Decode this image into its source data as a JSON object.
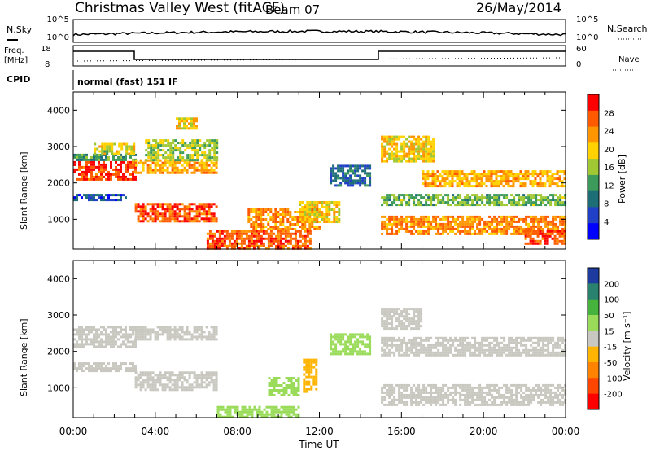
{
  "header": {
    "title": "Christmas Valley West (fitACF)",
    "beam": "Beam 07",
    "date": "26/May/2014"
  },
  "status": {
    "nsky_label": "N.Sky",
    "nsearch_label": "N.Search",
    "freq_label": "Freq.",
    "freq_unit": "[MHz]",
    "nave_label": "Nave",
    "cpid_label": "CPID",
    "cpid_text": "normal (fast) 151 IF",
    "nsky_ticks": [
      "10^5",
      "10^0"
    ],
    "nsearch_ticks": [
      "10^5",
      "10^0"
    ],
    "freq_ticks": [
      "18",
      "8"
    ],
    "nave_ticks": [
      "60",
      "0"
    ]
  },
  "chart_data": [
    {
      "type": "heatmap",
      "title": "",
      "xlabel": "Time UT",
      "ylabel": "Slant Range [km]",
      "xlim": [
        "00:00",
        "24:00"
      ],
      "ylim": [
        180,
        4500
      ],
      "x_ticks": [
        "00:00",
        "04:00",
        "08:00",
        "12:00",
        "16:00",
        "20:00",
        "00:00"
      ],
      "y_ticks": [
        1000,
        2000,
        3000,
        4000
      ],
      "colorbar": {
        "label": "Power [dB]",
        "ticks": [
          "28",
          "24",
          "20",
          "16",
          "12",
          "8",
          "4"
        ],
        "colors": [
          "#ff0000",
          "#ff5a00",
          "#ff9600",
          "#ffd200",
          "#a0c832",
          "#3c9a5a",
          "#1e6e78",
          "#2040c8",
          "#0000ff"
        ]
      },
      "bands": [
        {
          "t0": 0.0,
          "t1": 3.0,
          "r0": 2100,
          "r1": 2600,
          "value": 28
        },
        {
          "t0": 0.0,
          "t1": 3.0,
          "r0": 2600,
          "r1": 2800,
          "value": 12
        },
        {
          "t0": 0.0,
          "t1": 2.5,
          "r0": 1550,
          "r1": 1700,
          "value": 6
        },
        {
          "t0": 1.0,
          "t1": 3.0,
          "r0": 2800,
          "r1": 3100,
          "value": 18
        },
        {
          "t0": 3.0,
          "t1": 7.0,
          "r0": 950,
          "r1": 1450,
          "value": 27
        },
        {
          "t0": 3.0,
          "t1": 7.0,
          "r0": 2300,
          "r1": 2650,
          "value": 22
        },
        {
          "t0": 3.5,
          "t1": 7.0,
          "r0": 2650,
          "r1": 3200,
          "value": 16
        },
        {
          "t0": 5.0,
          "t1": 6.0,
          "r0": 3500,
          "r1": 3800,
          "value": 20
        },
        {
          "t0": 6.5,
          "t1": 11.5,
          "r0": 200,
          "r1": 700,
          "value": 27
        },
        {
          "t0": 8.5,
          "t1": 12.0,
          "r0": 700,
          "r1": 1300,
          "value": 24
        },
        {
          "t0": 11.0,
          "t1": 13.0,
          "r0": 900,
          "r1": 1500,
          "value": 20
        },
        {
          "t0": 12.5,
          "t1": 14.5,
          "r0": 1900,
          "r1": 2500,
          "value": 8
        },
        {
          "t0": 15.0,
          "t1": 17.5,
          "r0": 2600,
          "r1": 3300,
          "value": 20
        },
        {
          "t0": 15.0,
          "t1": 24.0,
          "r0": 600,
          "r1": 1100,
          "value": 24
        },
        {
          "t0": 15.0,
          "t1": 24.0,
          "r0": 1400,
          "r1": 1700,
          "value": 14
        },
        {
          "t0": 17.0,
          "t1": 24.0,
          "r0": 1900,
          "r1": 2350,
          "value": 22
        },
        {
          "t0": 22.0,
          "t1": 24.0,
          "r0": 300,
          "r1": 700,
          "value": 28
        }
      ]
    },
    {
      "type": "heatmap",
      "title": "",
      "xlabel": "Time UT",
      "ylabel": "Slant Range [km]",
      "xlim": [
        "00:00",
        "24:00"
      ],
      "ylim": [
        180,
        4500
      ],
      "x_ticks": [
        "00:00",
        "04:00",
        "08:00",
        "12:00",
        "16:00",
        "20:00",
        "00:00"
      ],
      "y_ticks": [
        1000,
        2000,
        3000,
        4000
      ],
      "colorbar": {
        "label": "Velocity [m s⁻¹]",
        "ticks": [
          "200",
          "100",
          "50",
          "15",
          "-15",
          "-50",
          "-100",
          "-200"
        ],
        "colors": [
          "#1e3ca0",
          "#28826e",
          "#46b43c",
          "#9adc5a",
          "#c8c8c0",
          "#ffb400",
          "#ff8200",
          "#ff4600",
          "#ff0000"
        ]
      },
      "bands": [
        {
          "t0": 0.0,
          "t1": 3.0,
          "r0": 2100,
          "r1": 2700,
          "value": 0
        },
        {
          "t0": 0.0,
          "t1": 3.0,
          "r0": 1450,
          "r1": 1700,
          "value": 0
        },
        {
          "t0": 3.0,
          "t1": 7.0,
          "r0": 2300,
          "r1": 2700,
          "value": 0
        },
        {
          "t0": 3.0,
          "t1": 7.0,
          "r0": 950,
          "r1": 1450,
          "value": 0
        },
        {
          "t0": 7.0,
          "t1": 11.0,
          "r0": 200,
          "r1": 500,
          "value": 45
        },
        {
          "t0": 9.5,
          "t1": 11.0,
          "r0": 800,
          "r1": 1300,
          "value": 60
        },
        {
          "t0": 11.2,
          "t1": 11.8,
          "r0": 900,
          "r1": 1800,
          "value": -60
        },
        {
          "t0": 12.5,
          "t1": 14.5,
          "r0": 1900,
          "r1": 2500,
          "value": 55
        },
        {
          "t0": 15.0,
          "t1": 24.0,
          "r0": 1900,
          "r1": 2400,
          "value": 0
        },
        {
          "t0": 15.0,
          "t1": 24.0,
          "r0": 500,
          "r1": 1100,
          "value": 0
        },
        {
          "t0": 15.0,
          "t1": 17.0,
          "r0": 2600,
          "r1": 3200,
          "value": 0
        }
      ]
    }
  ]
}
